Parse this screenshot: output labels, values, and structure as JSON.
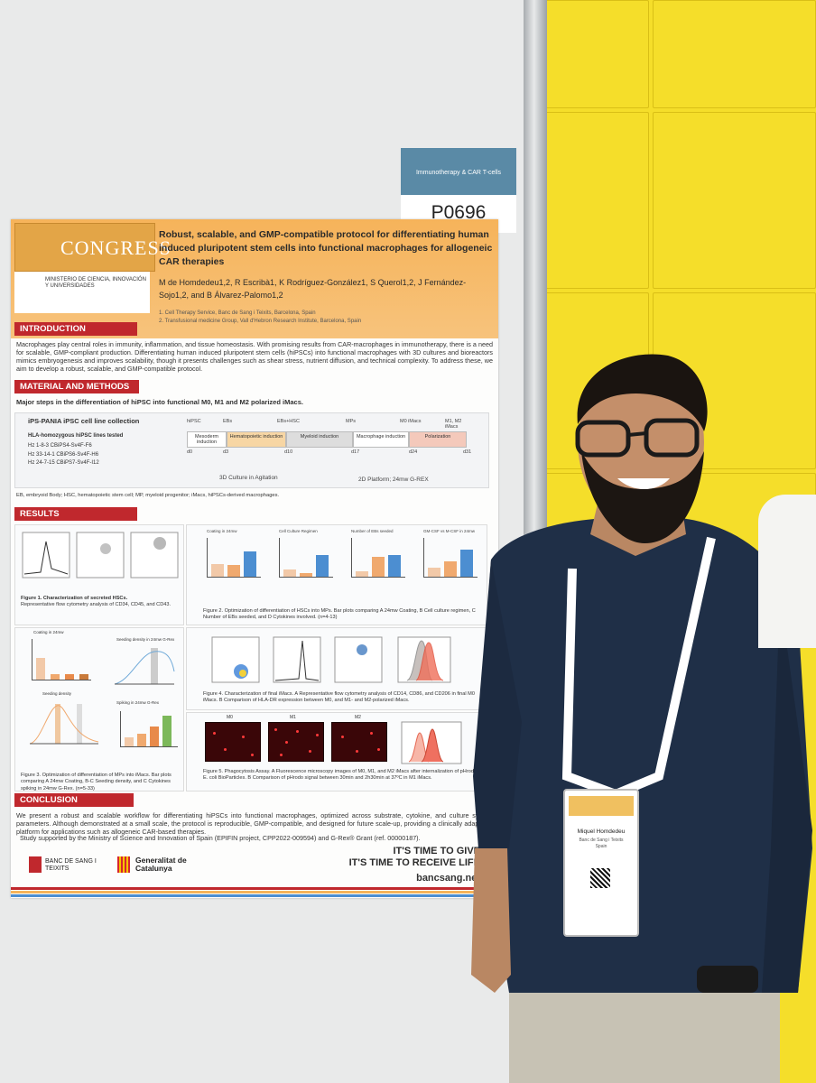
{
  "booth": {
    "category_tag": "Immunotherapy & CAR T-cells",
    "poster_id": "P0696"
  },
  "poster": {
    "congress_logo": "CONGRESS",
    "ministry": "MINISTERIO DE CIENCIA, INNOVACIÓN Y UNIVERSIDADES",
    "title": "Robust, scalable, and GMP-compatible protocol for differentiating human induced pluripotent stem cells into functional macrophages for allogeneic CAR therapies",
    "authors": "M de Homdedeu1,2, R Escribà1, K Rodríguez-González1, S Querol1,2, J Fernández-Sojo1,2, and B Álvarez-Palomo1,2",
    "affiliation_1": "1. Cell Therapy Service, Banc de Sang i Teixits, Barcelona, Spain",
    "affiliation_2": "2. Transfusional medicine Group, Vall d'Hebron Research Institute, Barcelona, Spain",
    "introduction_heading": "INTRODUCTION",
    "introduction_text": "Macrophages play central roles in immunity, inflammation, and tissue homeostasis. With promising results from CAR-macrophages in immunotherapy, there is a need for scalable, GMP-compliant production. Differentiating human induced pluripotent stem cells (hiPSCs) into functional macrophages with 3D cultures and bioreactors mimics embryogenesis and improves scalability, though it presents challenges such as shear stress, nutrient diffusion, and technical complexity. To address these, we aim to develop a robust, scalable, and GMP-compatible protocol.",
    "methods_heading": "MATERIAL AND METHODS",
    "methods_subheading": "Major steps in the differentiation of hiPSC into functional M0, M1 and M2 polarized iMacs.",
    "cell_line_heading": "iPS-PANIA iPSC cell line collection",
    "hla_heading": "HLA-homozygous hiPSC lines tested",
    "hla_lines": [
      "Hz 1-8-3 CBiPS4-Sv4F-F6",
      "Hz 33-14-1 CBiPS6-Sv4F-H6",
      "Hz 24-7-15 CBiPS7-Sv4F-I12"
    ],
    "timeline_top": [
      "hiPSC",
      "EBs",
      "EBs+HSC",
      "MPs",
      "M0 iMacs",
      "M1, M2 iMacs"
    ],
    "timeline_stages": [
      "Mesoderm induction",
      "Hematopoietic induction",
      "Myeloid induction",
      "Macrophage induction",
      "Polarization"
    ],
    "timeline_days": [
      "d0",
      "d3",
      "d10",
      "d17",
      "d24",
      "d31"
    ],
    "culture_3d": "3D Culture in Agitation",
    "culture_2d": "2D Platform; 24mw G-REX",
    "abbreviations": "EB, embryoid Body; HSC, hematopoietic stem cell; MP, myeloid progenitor; iMacs, hiPSCs-derived macrophages.",
    "results_heading": "RESULTS",
    "fig1_caption_title": "Figure 1. Characterization of secreted HSCs.",
    "fig1_caption": "Representative flow cytometry analysis of CD34, CD45, and CD43.",
    "fig2_caption": "Figure 2. Optimization of differentiation of HSCs into MPs. Bar plots comparing A 24mw Coating, B Cell culture regimen, C Number of EBs seeded, and D Cytokines involved. (n=4-13)",
    "fig2_panels": [
      "Coating in 24mw",
      "Cell Culture Regimen",
      "Number of EBs seeded",
      "GM-CSF vs M-CSF in 24mw"
    ],
    "fig3_caption": "Figure 3. Optimization of differentiation of MPs into iMacs. Bar plots comparing A 24mw Coating, B-C Seeding density, and C Cytokines spiking in 24mw G-Rex. (n=5-33)",
    "fig3_panels": [
      "Coating in 24mw",
      "Seeding density in 24mw G-Rex",
      "Seeding density",
      "Spiking in 24mw G-Rex"
    ],
    "fig4_caption": "Figure 4. Characterization of final iMacs. A Representative flow cytometry analysis of CD14, CD86, and CD206 in final M0 iMacs. B Comparison of HLA-DR expression between M0, and M1- and M2-polarized iMacs.",
    "fig5_caption": "Figure 5. Phagocytosis Assay. A Fluorescence microscopy images of M0, M1, and M2 iMacs after internalization of pHrodo E. coli BioParticles. B Comparison of pHrodo signal between 30min and 2h30min at 37ºC in M1 iMacs.",
    "fig5_labels": [
      "M0",
      "M1",
      "M2"
    ],
    "conclusion_heading": "CONCLUSION",
    "conclusion_text": "We present a robust and scalable workflow for differentiating hiPSCs into functional macrophages, optimized across substrate, cytokine, and culture system parameters. Although demonstrated at a small scale, the protocol is reproducible, GMP-compatible, and designed for future scale-up, providing a clinically adaptable platform for applications such as allogeneic CAR-based therapies.",
    "funding": "Study supported by the Ministry of Science and Innovation of Spain (EPIFIN project, CPP2022-009594) and G-Rex® Grant (ref. 00000187).",
    "bst_logo": "BANC DE SANG I TEIXITS",
    "gencat_logo": "Generalitat de Catalunya",
    "slogan_1": "IT'S TIME TO GIVE",
    "slogan_2": "IT'S TIME TO RECEIVE LIFE",
    "website": "bancsang.net"
  },
  "badge": {
    "name": "Miquel Homdedeu",
    "org": "Banc de Sang i Teixits",
    "role": "Spain"
  },
  "colors": {
    "header_orange": "#f6b35a",
    "section_red": "#c0282d",
    "wall_yellow": "#f5de2a",
    "shirt_navy": "#1f2f47"
  }
}
